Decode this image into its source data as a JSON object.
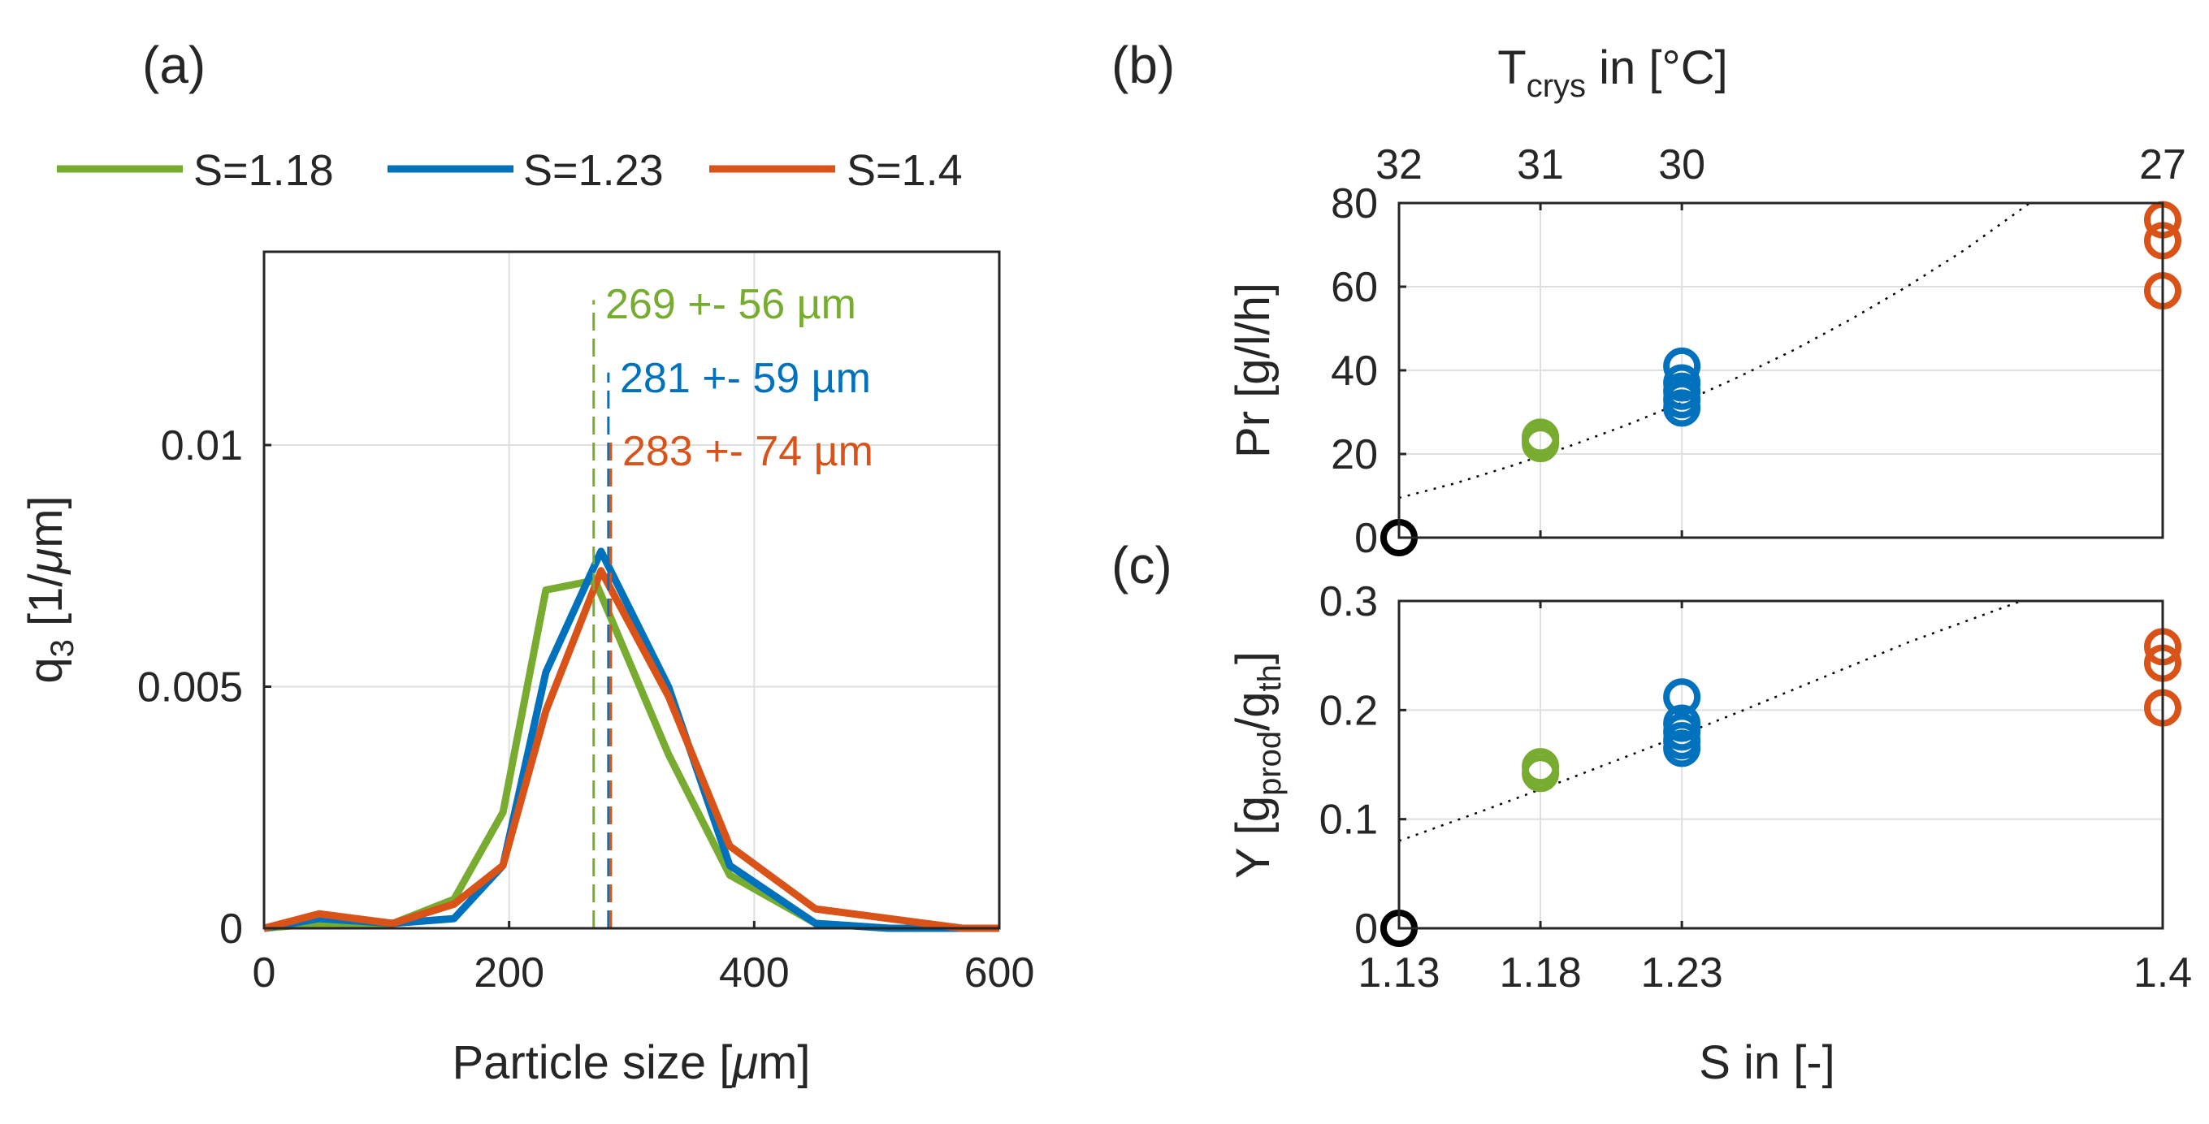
{
  "colors": {
    "green": "#77ac30",
    "blue": "#0072bd",
    "orange": "#d95319",
    "black": "#000000",
    "axis": "#262626",
    "grid": "#dfdfdf"
  },
  "chart_data": [
    {
      "panel": "(a)",
      "type": "line",
      "xlabel_pre": "Particle size [",
      "xlabel_mu": "μ",
      "xlabel_post": "m]",
      "ylabel_q": "q",
      "ylabel_sub": "3",
      "ylabel_pre": " [1/",
      "ylabel_mu": "μ",
      "ylabel_post": "m]",
      "xlim": [
        0,
        600
      ],
      "ylim": [
        0,
        0.014
      ],
      "xticks": [
        0,
        200,
        400,
        600
      ],
      "xticklabels": [
        "0",
        "200",
        "400",
        "600"
      ],
      "yticks": [
        0,
        0.005,
        0.01
      ],
      "yticklabels": [
        "0",
        "0.005",
        "0.01"
      ],
      "grid": true,
      "legend_position": "top",
      "series": [
        {
          "name": "S=1.18",
          "color": "#77ac30",
          "x": [
            0,
            45,
            105,
            155,
            195,
            230,
            270,
            330,
            380,
            450,
            510,
            570,
            600
          ],
          "y": [
            0,
            0.0001,
            0.0001,
            0.0006,
            0.0024,
            0.007,
            0.0072,
            0.0036,
            0.0011,
            0.0001,
            0,
            0,
            0
          ],
          "mean_label": "269 +- 56 µm",
          "mean": 269,
          "mean_marker_top": 0.013
        },
        {
          "name": "S=1.23",
          "color": "#0072bd",
          "x": [
            0,
            45,
            105,
            155,
            195,
            230,
            275,
            330,
            380,
            450,
            510,
            570,
            600
          ],
          "y": [
            0,
            0.0002,
            0.0001,
            0.0002,
            0.0013,
            0.0053,
            0.0078,
            0.005,
            0.0013,
            0.0001,
            0,
            0,
            0
          ],
          "mean_label": "281 +- 59 µm",
          "mean": 281,
          "mean_marker_top": 0.0115
        },
        {
          "name": "S=1.4",
          "color": "#d95319",
          "x": [
            0,
            45,
            105,
            155,
            195,
            230,
            275,
            330,
            380,
            450,
            510,
            570,
            600
          ],
          "y": [
            0,
            0.0003,
            0.0001,
            0.0005,
            0.0013,
            0.0045,
            0.0074,
            0.0048,
            0.0017,
            0.0004,
            0.0002,
            0,
            0
          ],
          "mean_label": "283 +- 74 µm",
          "mean": 283,
          "mean_marker_top": 0.0102
        }
      ]
    },
    {
      "panel": "(b)",
      "type": "scatter",
      "ylabel": "Pr [g/l/h]",
      "top_xlabel_pre": "T",
      "top_xlabel_sub": "crys",
      "top_xlabel_post": " in [°C]",
      "top_ticklabels": [
        "32",
        "31",
        "30",
        "27"
      ],
      "xlim": [
        1.13,
        1.4
      ],
      "xticks": [
        1.13,
        1.18,
        1.23,
        1.4
      ],
      "ylim": [
        0,
        80
      ],
      "yticks": [
        0,
        20,
        40,
        60,
        80
      ],
      "yticklabels": [
        "0",
        "20",
        "40",
        "60",
        "80"
      ],
      "grid": true,
      "points": [
        {
          "x": 1.13,
          "y": 0,
          "color": "#000000"
        },
        {
          "x": 1.18,
          "y": 22.5,
          "color": "#77ac30"
        },
        {
          "x": 1.18,
          "y": 23.5,
          "color": "#77ac30"
        },
        {
          "x": 1.18,
          "y": 24,
          "color": "#77ac30"
        },
        {
          "x": 1.23,
          "y": 31,
          "color": "#0072bd"
        },
        {
          "x": 1.23,
          "y": 33,
          "color": "#0072bd"
        },
        {
          "x": 1.23,
          "y": 35,
          "color": "#0072bd"
        },
        {
          "x": 1.23,
          "y": 37,
          "color": "#0072bd"
        },
        {
          "x": 1.23,
          "y": 41,
          "color": "#0072bd"
        },
        {
          "x": 1.4,
          "y": 59,
          "color": "#d95319"
        },
        {
          "x": 1.4,
          "y": 71,
          "color": "#d95319"
        },
        {
          "x": 1.4,
          "y": 76,
          "color": "#d95319"
        }
      ],
      "trend": {
        "x": [
          1.13,
          1.15,
          1.17,
          1.19,
          1.21,
          1.23,
          1.25,
          1.27,
          1.29,
          1.31,
          1.33,
          1.353
        ],
        "y": [
          9.5,
          13,
          17.2,
          21.8,
          26.8,
          32.3,
          38.4,
          45,
          52.3,
          60.2,
          68.8,
          80
        ]
      }
    },
    {
      "panel": "(c)",
      "type": "scatter",
      "ylabel_pre": "Y [g",
      "ylabel_sub1": "prod",
      "ylabel_mid": "/g",
      "ylabel_sub2": "th",
      "ylabel_post": "]",
      "xlabel": "S in [-]",
      "xlim": [
        1.13,
        1.4
      ],
      "xticks": [
        1.13,
        1.18,
        1.23,
        1.4
      ],
      "xticklabels": [
        "1.13",
        "1.18",
        "1.23",
        "1.4"
      ],
      "ylim": [
        0,
        0.3
      ],
      "yticks": [
        0,
        0.1,
        0.2,
        0.3
      ],
      "yticklabels": [
        "0",
        "0.1",
        "0.2",
        "0.3"
      ],
      "grid": true,
      "points": [
        {
          "x": 1.13,
          "y": 0,
          "color": "#000000"
        },
        {
          "x": 1.18,
          "y": 0.142,
          "color": "#77ac30"
        },
        {
          "x": 1.18,
          "y": 0.148,
          "color": "#77ac30"
        },
        {
          "x": 1.23,
          "y": 0.165,
          "color": "#0072bd"
        },
        {
          "x": 1.23,
          "y": 0.172,
          "color": "#0072bd"
        },
        {
          "x": 1.23,
          "y": 0.18,
          "color": "#0072bd"
        },
        {
          "x": 1.23,
          "y": 0.188,
          "color": "#0072bd"
        },
        {
          "x": 1.23,
          "y": 0.212,
          "color": "#0072bd"
        },
        {
          "x": 1.4,
          "y": 0.202,
          "color": "#d95319"
        },
        {
          "x": 1.4,
          "y": 0.243,
          "color": "#d95319"
        },
        {
          "x": 1.4,
          "y": 0.258,
          "color": "#d95319"
        }
      ],
      "trend": {
        "x": [
          1.13,
          1.16,
          1.19,
          1.22,
          1.25,
          1.28,
          1.31,
          1.35
        ],
        "y": [
          0.08,
          0.108,
          0.137,
          0.167,
          0.198,
          0.23,
          0.262,
          0.3
        ]
      }
    }
  ]
}
